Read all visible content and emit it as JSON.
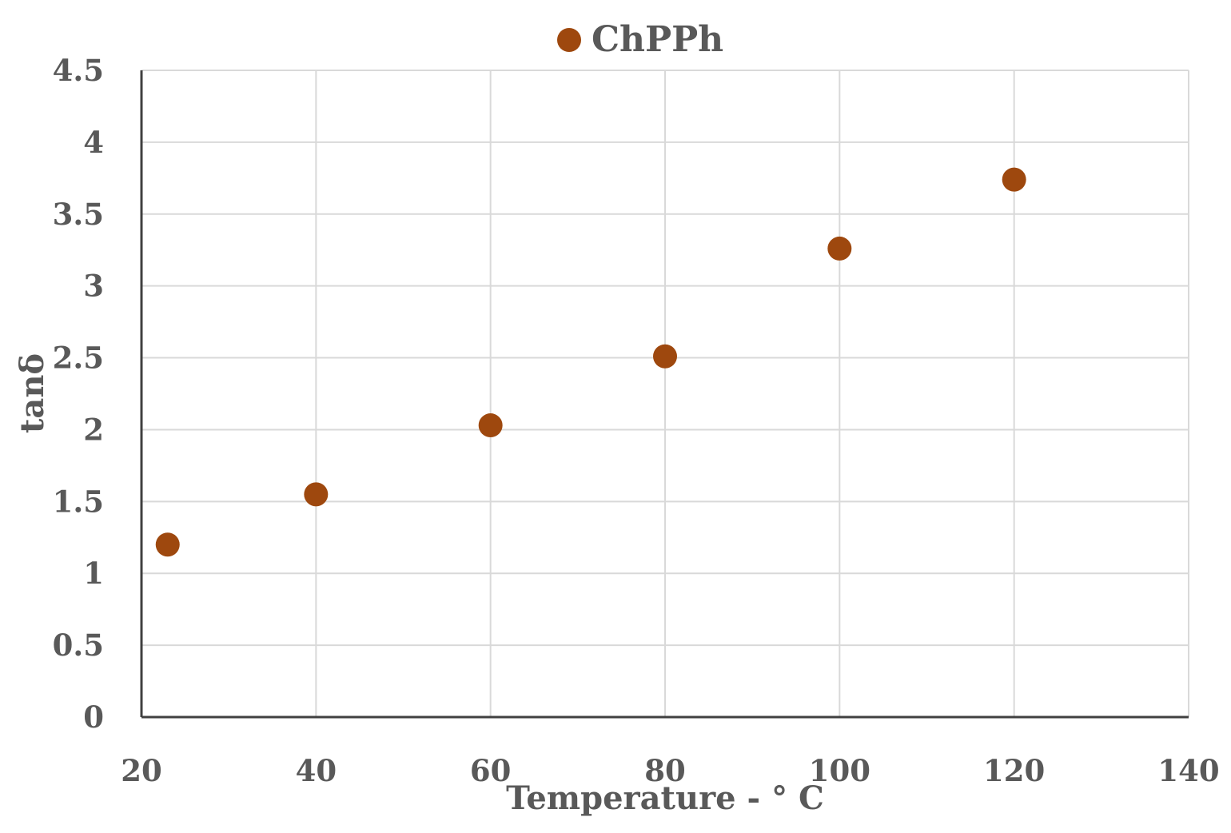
{
  "chart_data": {
    "type": "scatter",
    "title": "",
    "xlabel": "Temperature - ° C",
    "ylabel": "tanδ",
    "xlim": [
      20,
      140
    ],
    "ylim": [
      0,
      4.5
    ],
    "x_ticks": [
      "20",
      "40",
      "60",
      "80",
      "100",
      "120",
      "140"
    ],
    "y_ticks": [
      "0",
      "0.5",
      "1",
      "1.5",
      "2",
      "2.5",
      "3",
      "3.5",
      "4",
      "4.5"
    ],
    "grid": true,
    "legend_position": "top",
    "series": [
      {
        "name": "ChPPh",
        "color": "#9e480e",
        "points": [
          {
            "x": 23,
            "y": 1.2
          },
          {
            "x": 40,
            "y": 1.55
          },
          {
            "x": 60,
            "y": 2.03
          },
          {
            "x": 80,
            "y": 2.51
          },
          {
            "x": 100,
            "y": 3.26
          },
          {
            "x": 120,
            "y": 3.74
          }
        ]
      }
    ]
  }
}
